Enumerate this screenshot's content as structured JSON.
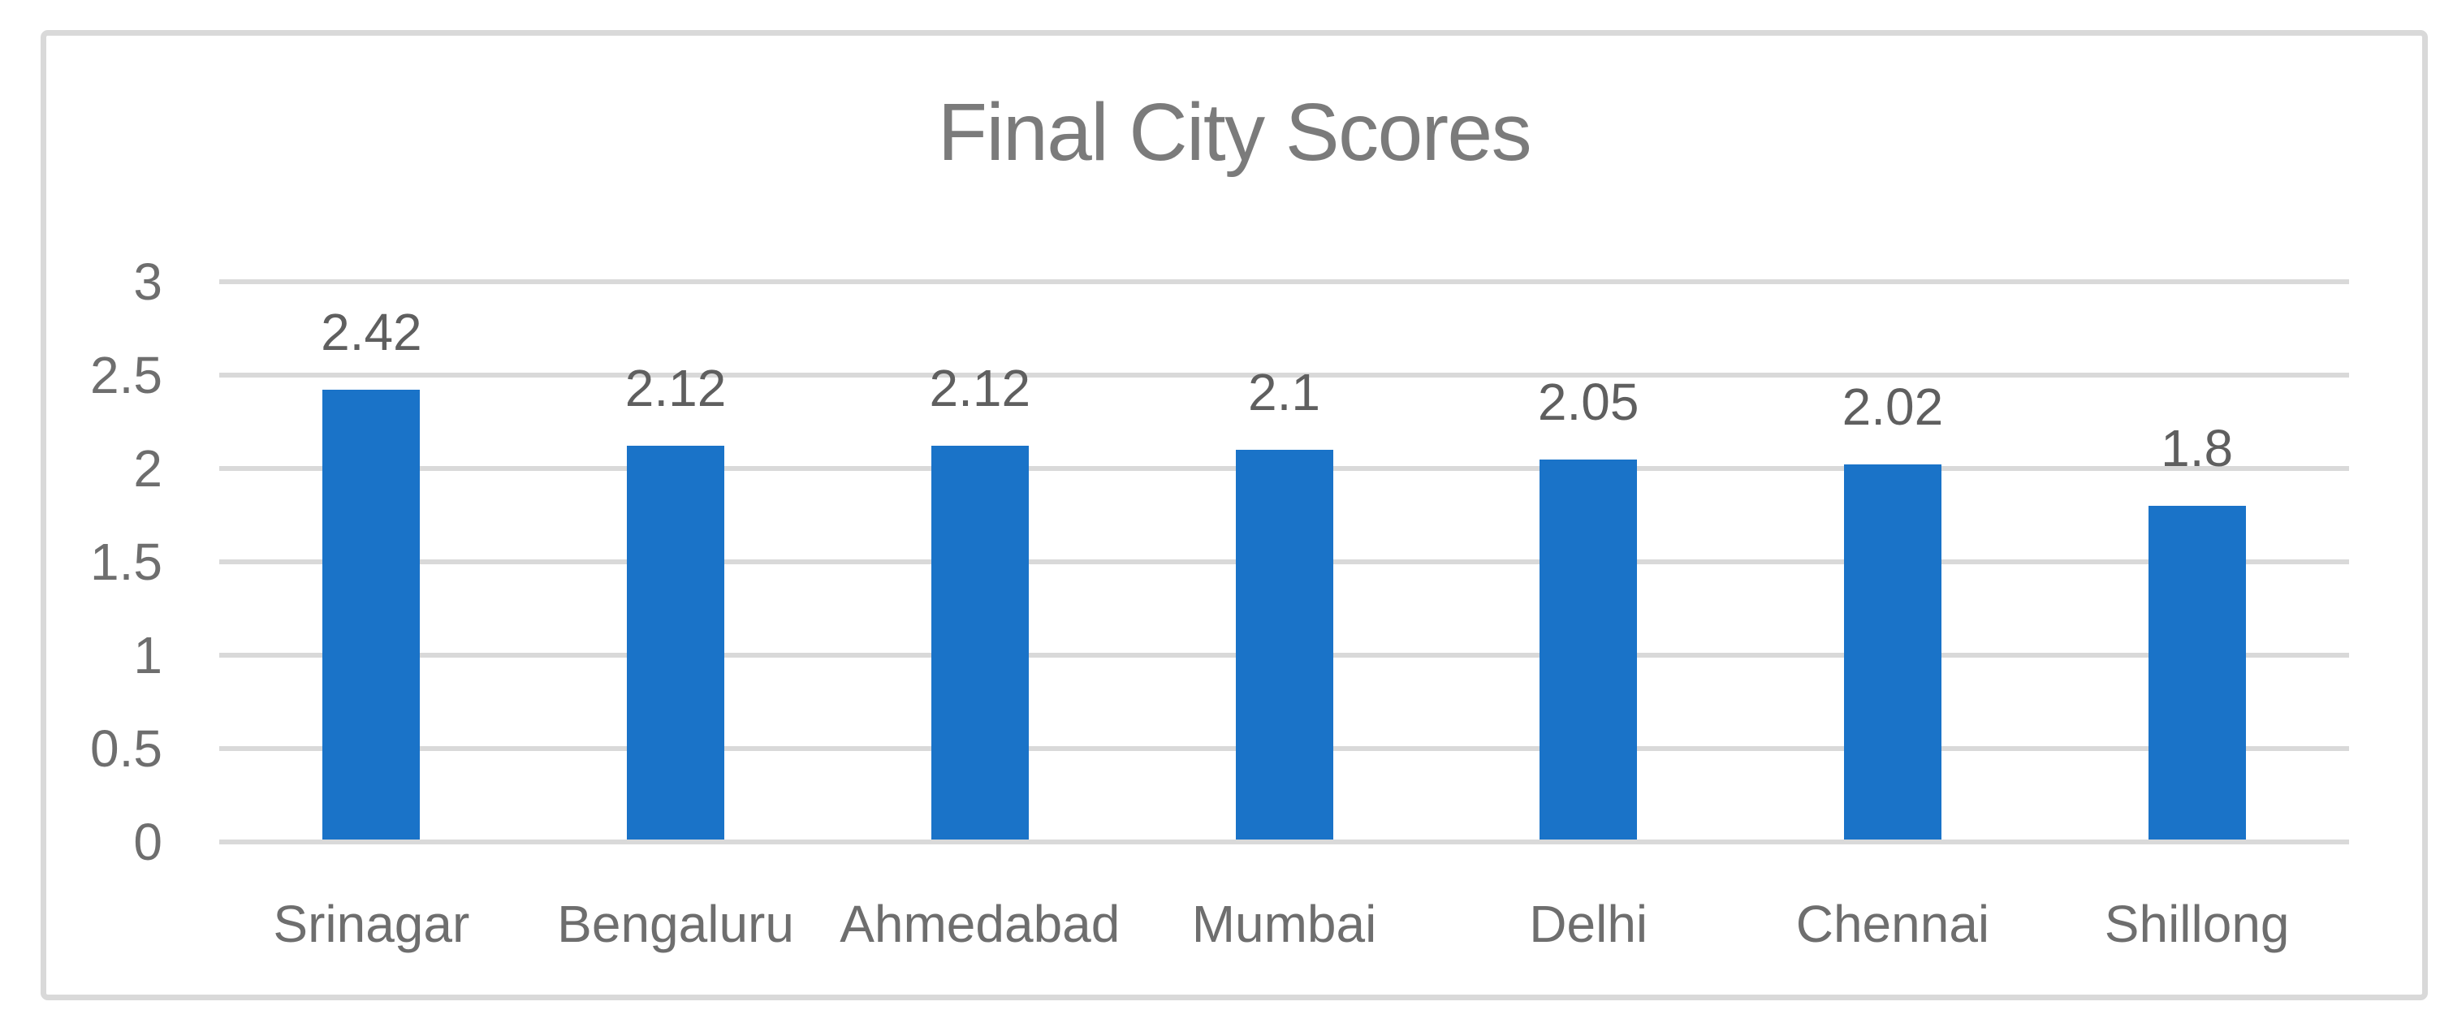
{
  "chart_data": {
    "type": "bar",
    "title": "Final City Scores",
    "categories": [
      "Srinagar",
      "Bengaluru",
      "Ahmedabad",
      "Mumbai",
      "Delhi",
      "Chennai",
      "Shillong"
    ],
    "values": [
      2.42,
      2.12,
      2.12,
      2.1,
      2.05,
      2.02,
      1.8
    ],
    "data_labels": [
      "2.42",
      "2.12",
      "2.12",
      "2.1",
      "2.05",
      "2.02",
      "1.8"
    ],
    "ytick_labels": [
      "3",
      "2.5",
      "2",
      "1.5",
      "1",
      "0.5",
      "0"
    ],
    "yticks": [
      3,
      2.5,
      2,
      1.5,
      1,
      0.5,
      0
    ],
    "ylim": [
      0,
      3
    ],
    "xlabel": "",
    "ylabel": "",
    "grid": true,
    "legend": false,
    "colors": {
      "bar": "#1a73c8",
      "gridline": "#d9d9d9",
      "frame_border": "#d9d9d9",
      "title_text": "#7b7b7b",
      "axis_text": "#6e6e6e",
      "data_label_text": "#5f5f5f",
      "background": "#ffffff"
    }
  }
}
